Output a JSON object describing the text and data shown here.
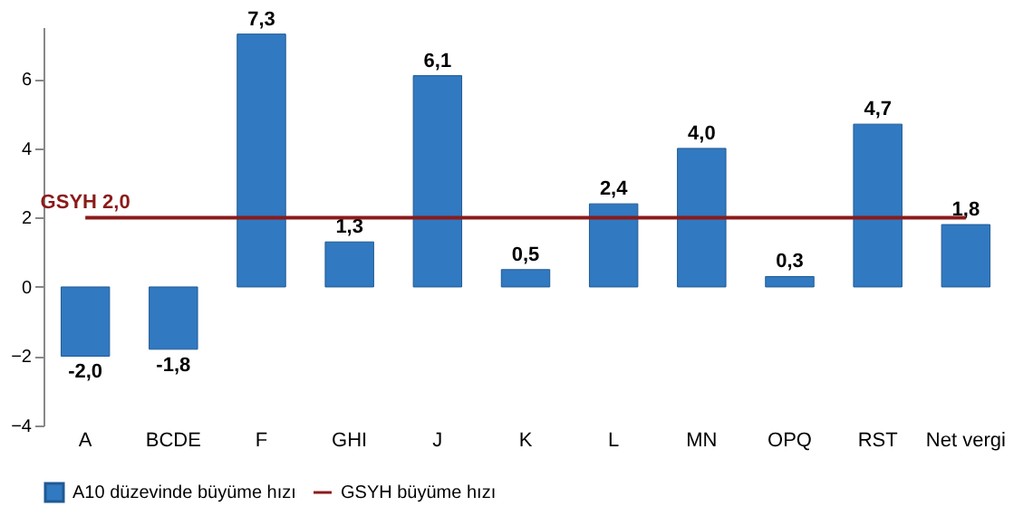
{
  "chart_data": {
    "type": "bar",
    "categories": [
      "A",
      "BCDE",
      "F",
      "GHI",
      "J",
      "K",
      "L",
      "MN",
      "OPQ",
      "RST",
      "Net vergi"
    ],
    "series": [
      {
        "name": "A10 düzevinde büyüme hızı",
        "color": "#3179c0",
        "values": [
          -2.0,
          -1.8,
          7.3,
          1.3,
          6.1,
          0.5,
          2.4,
          4.0,
          0.3,
          4.7,
          1.8
        ],
        "value_labels": [
          "-2,0",
          "-1,8",
          "7,3",
          "1,3",
          "6,1",
          "0,5",
          "2,4",
          "4,0",
          "0,3",
          "4,7",
          "1,8"
        ]
      },
      {
        "name": "GSYH büyüme hızı",
        "type": "line",
        "color": "#8b1a1a",
        "values": [
          2.0,
          2.0,
          2.0,
          2.0,
          2.0,
          2.0,
          2.0,
          2.0,
          2.0,
          2.0,
          2.0
        ]
      }
    ],
    "annotations": [
      {
        "text": "GSYH 2,0",
        "x": "A",
        "y": 2.0
      }
    ],
    "ylim": [
      -4,
      7.5
    ],
    "yticks": [
      -4,
      -2,
      0,
      2,
      4,
      6
    ],
    "grid": false,
    "legend": "bottom",
    "marker": "none",
    "line_style": "solid"
  }
}
